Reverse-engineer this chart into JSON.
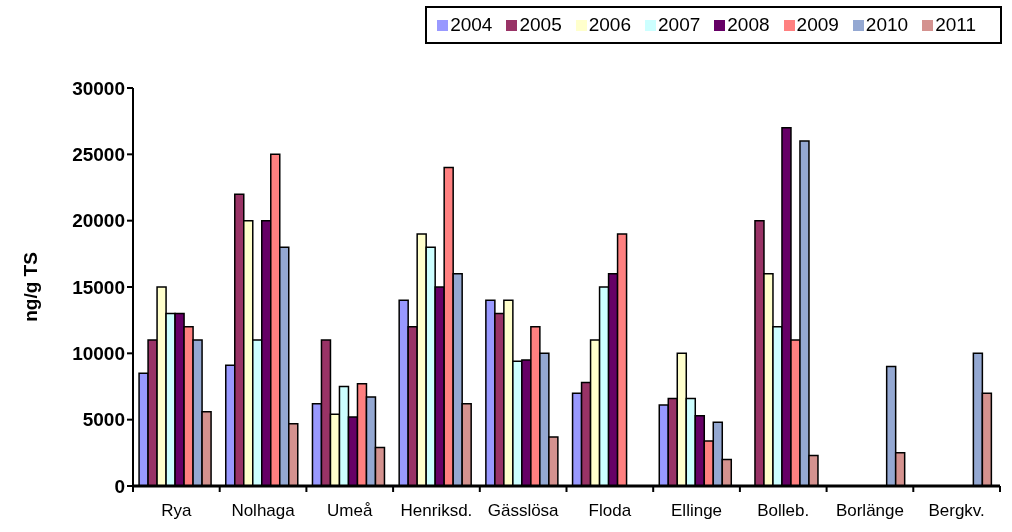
{
  "chart_data": {
    "type": "bar",
    "categories": [
      "Rya",
      "Nolhaga",
      "Umeå",
      "Henriksd.",
      "Gässlösa",
      "Floda",
      "Ellinge",
      "Bolleb.",
      "Borlänge",
      "Bergkv."
    ],
    "ylabel": "ng/g TS",
    "ylim": [
      0,
      30000
    ],
    "yticks": [
      0,
      5000,
      10000,
      15000,
      20000,
      25000,
      30000
    ],
    "grid": false,
    "legend": "top right",
    "series": [
      {
        "name": "2004",
        "color": "#9999ff",
        "values": [
          8500,
          9100,
          6200,
          14000,
          14000,
          7000,
          6100,
          null,
          null,
          null
        ]
      },
      {
        "name": "2005",
        "color": "#993366",
        "values": [
          11000,
          22000,
          11000,
          12000,
          13000,
          7800,
          6600,
          20000,
          null,
          null
        ]
      },
      {
        "name": "2006",
        "color": "#ffffcc",
        "values": [
          15000,
          20000,
          5400,
          19000,
          14000,
          11000,
          10000,
          16000,
          null,
          null
        ]
      },
      {
        "name": "2007",
        "color": "#ccffff",
        "values": [
          13000,
          11000,
          7500,
          18000,
          9400,
          15000,
          6600,
          12000,
          null,
          null
        ]
      },
      {
        "name": "2008",
        "color": "#660066",
        "values": [
          13000,
          20000,
          5200,
          15000,
          9500,
          16000,
          5300,
          27000,
          null,
          null
        ]
      },
      {
        "name": "2009",
        "color": "#ff8080",
        "values": [
          12000,
          25000,
          7700,
          24000,
          12000,
          19000,
          3400,
          11000,
          null,
          null
        ]
      },
      {
        "name": "2010",
        "color": "#94a8d2",
        "values": [
          11000,
          18000,
          6700,
          16000,
          10000,
          null,
          4800,
          26000,
          9000,
          10000
        ]
      },
      {
        "name": "2011",
        "color": "#d4928f",
        "values": [
          5600,
          4700,
          2900,
          6200,
          3700,
          null,
          2000,
          2300,
          2500,
          7000
        ]
      }
    ]
  }
}
